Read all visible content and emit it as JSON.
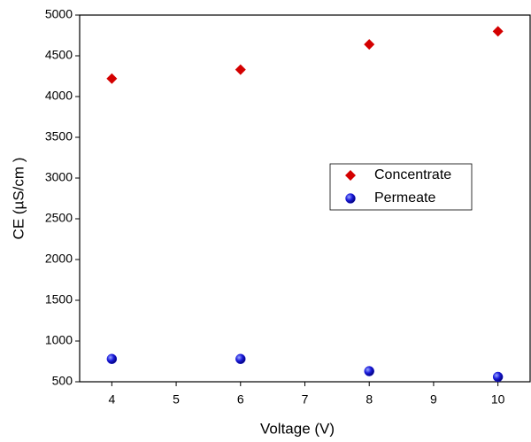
{
  "chart_data": {
    "type": "scatter",
    "x_label": "Voltage (V)",
    "y_label": "CE (µS/cm )",
    "xlim": [
      3.5,
      10.5
    ],
    "xticks": [
      4,
      5,
      6,
      7,
      8,
      9,
      10
    ],
    "ylim": [
      500,
      5000
    ],
    "yticks": [
      500,
      1000,
      1500,
      2000,
      2500,
      3000,
      3500,
      4000,
      4500,
      5000
    ],
    "legend": "right",
    "series": [
      {
        "name": "Concentrate",
        "color": "#d40000",
        "marker": "diamond",
        "x": [
          4,
          6,
          8,
          10
        ],
        "values": [
          4220,
          4330,
          4640,
          4800
        ]
      },
      {
        "name": "Permeate",
        "color": "#1a1adb",
        "marker": "circle",
        "x": [
          4,
          6,
          8,
          10
        ],
        "values": [
          780,
          780,
          630,
          560
        ]
      }
    ]
  }
}
